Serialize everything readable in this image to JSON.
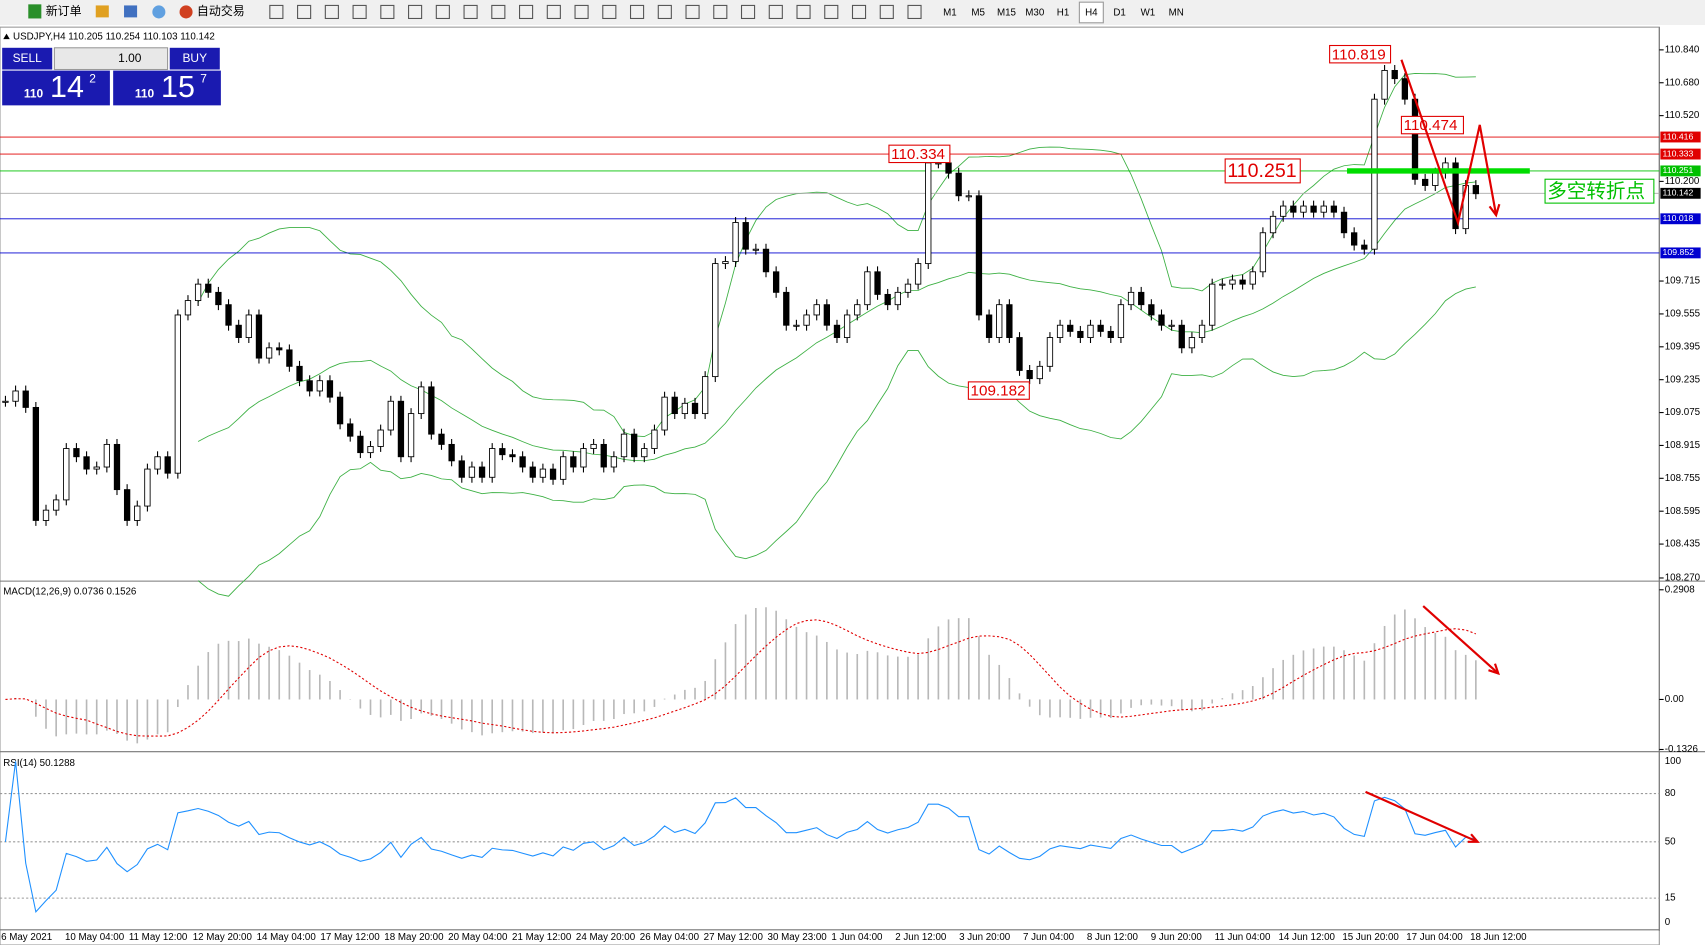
{
  "toolbar": {
    "buttons": [
      "新订单",
      "自动交易"
    ],
    "timeframes": [
      "M1",
      "M5",
      "M15",
      "M30",
      "H1",
      "H4",
      "D1",
      "W1",
      "MN"
    ],
    "active": "H4"
  },
  "chart_header": "USDJPY,H4 110.205 110.254 110.103 110.142",
  "trade_panel": {
    "sell": "SELL",
    "buy": "BUY",
    "lots": "1.00",
    "sell_big": "110",
    "sell_main": "14",
    "sell_pip": "2",
    "buy_big": "110",
    "buy_main": "15",
    "buy_pip": "7"
  },
  "chart_data": {
    "type": "candlestick",
    "closes": [
      109.13,
      109.18,
      109.1,
      108.55,
      108.6,
      108.65,
      108.9,
      108.86,
      108.8,
      108.81,
      108.92,
      108.7,
      108.55,
      108.62,
      108.8,
      108.86,
      108.78,
      109.55,
      109.62,
      109.7,
      109.66,
      109.6,
      109.5,
      109.44,
      109.55,
      109.34,
      109.39,
      109.38,
      109.3,
      109.23,
      109.18,
      109.23,
      109.15,
      109.02,
      108.96,
      108.88,
      108.91,
      108.99,
      109.13,
      108.86,
      109.07,
      109.2,
      108.97,
      108.92,
      108.84,
      108.76,
      108.81,
      108.76,
      108.9,
      108.87,
      108.86,
      108.81,
      108.76,
      108.8,
      108.75,
      108.86,
      108.81,
      108.9,
      108.92,
      108.81,
      108.86,
      108.97,
      108.86,
      108.9,
      108.99,
      109.15,
      109.07,
      109.12,
      109.07,
      109.25,
      109.8,
      109.81,
      110.0,
      109.87,
      109.87,
      109.76,
      109.66,
      109.5,
      109.5,
      109.55,
      109.6,
      109.5,
      109.44,
      109.55,
      109.6,
      109.76,
      109.65,
      109.6,
      109.66,
      109.7,
      109.8,
      110.29,
      110.29,
      110.24,
      110.13,
      110.13,
      109.55,
      109.44,
      109.6,
      109.44,
      109.28,
      109.24,
      109.3,
      109.44,
      109.5,
      109.47,
      109.44,
      109.5,
      109.47,
      109.44,
      109.6,
      109.66,
      109.6,
      109.55,
      109.5,
      109.5,
      109.39,
      109.44,
      109.5,
      109.7,
      109.7,
      109.72,
      109.7,
      109.76,
      109.95,
      110.03,
      110.08,
      110.05,
      110.08,
      110.05,
      110.08,
      110.05,
      109.95,
      109.89,
      109.87,
      110.6,
      110.74,
      110.7,
      110.6,
      110.21,
      110.18,
      110.24,
      110.29,
      109.97,
      110.18,
      110.14
    ],
    "ylim": [
      108.26,
      110.94
    ],
    "yticks": [
      {
        "value": 110.84,
        "label": "110.840"
      },
      {
        "value": 110.68,
        "label": "110.680"
      },
      {
        "value": 110.52,
        "label": "110.520"
      },
      {
        "value": 110.2,
        "label": "110.200"
      },
      109.715,
      109.555,
      109.395,
      109.235,
      109.075,
      108.915,
      108.755,
      108.595,
      108.435,
      {
        "value": 108.27,
        "label": "108.270"
      }
    ],
    "levels": [
      {
        "value": 110.416,
        "color": "#e00000"
      },
      {
        "value": 110.333,
        "color": "#e00000"
      },
      {
        "value": 110.251,
        "color": "#00c000"
      },
      {
        "value": 110.142,
        "color": "#000000"
      },
      {
        "value": 110.018,
        "color": "#0000d0"
      },
      {
        "value": 109.852,
        "color": "#0000d0"
      }
    ],
    "annotations": [
      110.819,
      110.474,
      110.334,
      110.251,
      109.182
    ],
    "note_label": "多空转折点",
    "x_labels": [
      "6 May 2021",
      "10 May 04:00",
      "11 May 12:00",
      "12 May 20:00",
      "14 May 04:00",
      "17 May 12:00",
      "18 May 20:00",
      "20 May 04:00",
      "21 May 12:00",
      "24 May 20:00",
      "26 May 04:00",
      "27 May 12:00",
      "30 May 23:00",
      "1 Jun 04:00",
      "2 Jun 12:00",
      "3 Jun 20:00",
      "7 Jun 04:00",
      "8 Jun 12:00",
      "9 Jun 20:00",
      "11 Jun 04:00",
      "14 Jun 12:00",
      "15 Jun 20:00",
      "17 Jun 04:00",
      "18 Jun 12:00"
    ]
  },
  "macd": {
    "label": "MACD(12,26,9) 0.0736 0.1526",
    "ylim": [
      -0.1326,
      0.308
    ],
    "yticks": [
      0.2908,
      {
        "value": 0,
        "label": "0.00"
      },
      -0.1326
    ]
  },
  "rsi": {
    "label": "RSI(14) 50.1288",
    "ylim": [
      -4,
      104
    ],
    "yticks": [
      100,
      80,
      50,
      15,
      0
    ]
  }
}
